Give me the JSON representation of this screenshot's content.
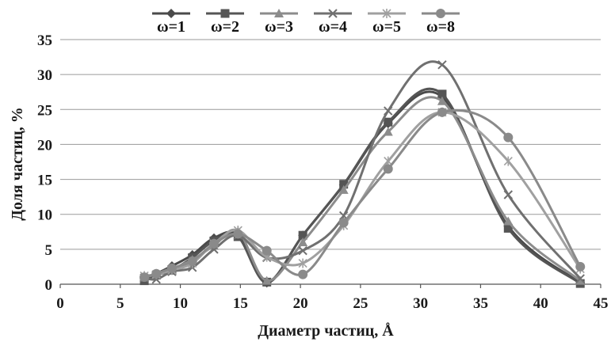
{
  "chart_data": {
    "type": "line",
    "xlabel": "Диаметр частиц, Å",
    "ylabel": "Доля частиц, %",
    "xlim": [
      0,
      45
    ],
    "ylim": [
      0,
      35
    ],
    "x_ticks": [
      "0",
      "5",
      "10",
      "15",
      "20",
      "25",
      "30",
      "35",
      "40",
      "45"
    ],
    "y_ticks": [
      "0",
      "5",
      "10",
      "15",
      "20",
      "25",
      "30",
      "35"
    ],
    "grid": "horizontal",
    "smooth": true,
    "legend_position": "top",
    "series": [
      {
        "name": "ω=1",
        "marker": "diamond",
        "color": "#4a4a4a",
        "x": [
          7,
          8,
          9.3,
          11,
          12.8,
          14.8,
          17.2,
          20.2,
          23.6,
          27.3,
          31.8,
          37.3,
          43.3
        ],
        "y": [
          0.8,
          1.5,
          2.6,
          4.2,
          6.6,
          7.0,
          0.2,
          7.0,
          14.2,
          23.0,
          26.8,
          8.3,
          0.2
        ]
      },
      {
        "name": "ω=2",
        "marker": "square",
        "color": "#555555",
        "x": [
          7,
          8,
          9.3,
          11,
          12.8,
          14.8,
          17.2,
          20.2,
          23.6,
          27.3,
          31.8,
          37.3,
          43.3
        ],
        "y": [
          0.5,
          1.3,
          2.0,
          3.8,
          6.2,
          6.8,
          0.3,
          7.0,
          14.3,
          23.2,
          27.2,
          8.0,
          0.1
        ]
      },
      {
        "name": "ω=3",
        "marker": "triangle",
        "color": "#8c8c8c",
        "x": [
          7,
          8,
          9.3,
          11,
          12.8,
          14.8,
          17.2,
          20.2,
          23.6,
          27.3,
          31.8,
          37.3,
          43.3
        ],
        "y": [
          1.0,
          1.4,
          2.2,
          3.5,
          5.5,
          7.6,
          0.5,
          6.0,
          13.5,
          21.8,
          26.2,
          9.0,
          0.5
        ]
      },
      {
        "name": "ω=4",
        "marker": "x",
        "color": "#707070",
        "x": [
          7,
          8,
          9.3,
          11,
          12.8,
          14.8,
          17.2,
          20.2,
          23.6,
          27.3,
          31.8,
          37.3,
          43.3
        ],
        "y": [
          0.9,
          0.7,
          1.8,
          2.4,
          5.0,
          7.0,
          3.8,
          4.8,
          9.8,
          24.8,
          31.4,
          12.8,
          0.8
        ]
      },
      {
        "name": "ω=5",
        "marker": "asterisk",
        "color": "#a0a0a0",
        "x": [
          7,
          8,
          9.3,
          11,
          12.8,
          14.8,
          17.2,
          20.2,
          23.6,
          27.3,
          31.8,
          37.3,
          43.3
        ],
        "y": [
          1.2,
          1.4,
          2.0,
          3.0,
          5.8,
          7.7,
          3.9,
          3.0,
          8.4,
          17.6,
          24.6,
          17.6,
          2.2
        ]
      },
      {
        "name": "ω=8",
        "marker": "circle",
        "color": "#8a8a8a",
        "x": [
          7,
          8,
          9.3,
          11,
          12.8,
          14.8,
          17.2,
          20.2,
          23.6,
          27.3,
          31.8,
          37.3,
          43.3
        ],
        "y": [
          1.0,
          1.5,
          2.3,
          3.3,
          5.8,
          7.2,
          4.8,
          1.4,
          8.8,
          16.5,
          24.6,
          21.0,
          2.5
        ]
      }
    ]
  }
}
